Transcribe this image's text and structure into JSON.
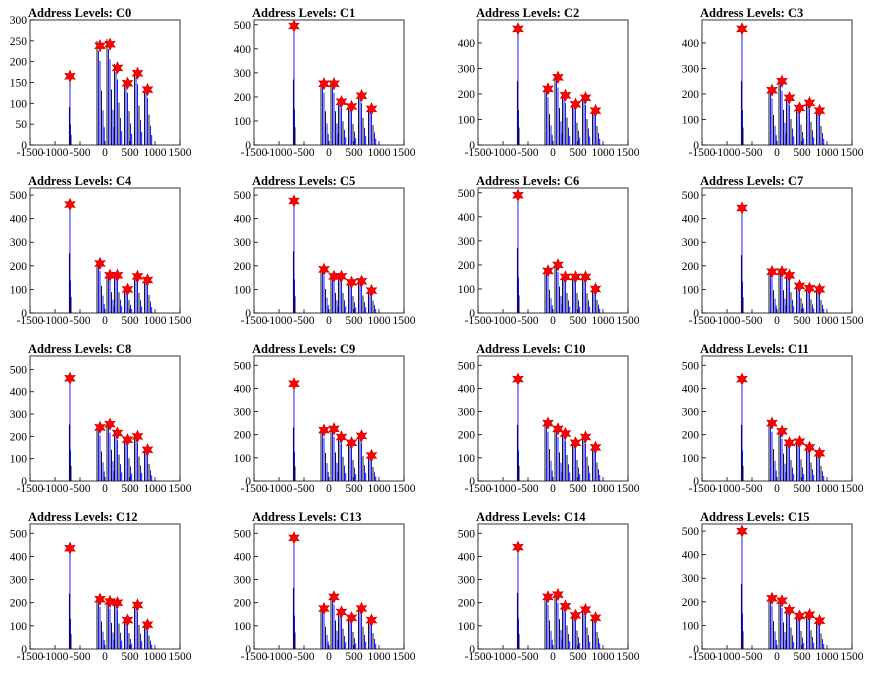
{
  "chart_data": [
    {
      "title": "Address Levels: C0",
      "type": "histogram",
      "xlim": [
        -1500,
        1500
      ],
      "ylim": [
        0,
        300
      ],
      "yticks": [
        0,
        50,
        100,
        150,
        200,
        250,
        300
      ],
      "xticks": [
        -1500,
        -1000,
        -500,
        0,
        500,
        1000,
        1500
      ],
      "peaks_x": [
        -700,
        -100,
        100,
        250,
        450,
        650,
        850
      ],
      "markers": [
        165,
        238,
        242,
        185,
        148,
        172,
        133
      ]
    },
    {
      "title": "Address Levels: C1",
      "type": "histogram",
      "xlim": [
        -1500,
        1500
      ],
      "ylim": [
        0,
        520
      ],
      "yticks": [
        0,
        100,
        200,
        300,
        400,
        500
      ],
      "xticks": [
        -1500,
        -1000,
        -500,
        0,
        500,
        1000,
        1500
      ],
      "peaks_x": [
        -700,
        -100,
        100,
        250,
        450,
        650,
        850
      ],
      "markers": [
        495,
        255,
        255,
        180,
        160,
        205,
        150
      ]
    },
    {
      "title": "Address Levels: C2",
      "type": "histogram",
      "xlim": [
        -1500,
        1500
      ],
      "ylim": [
        0,
        490
      ],
      "yticks": [
        0,
        100,
        200,
        300,
        400
      ],
      "xticks": [
        -1500,
        -1000,
        -500,
        0,
        500,
        1000,
        1500
      ],
      "peaks_x": [
        -700,
        -100,
        100,
        250,
        450,
        650,
        850
      ],
      "markers": [
        455,
        220,
        265,
        195,
        160,
        185,
        135
      ]
    },
    {
      "title": "Address Levels: C3",
      "type": "histogram",
      "xlim": [
        -1500,
        1500
      ],
      "ylim": [
        0,
        490
      ],
      "yticks": [
        0,
        100,
        200,
        300,
        400
      ],
      "xticks": [
        -1500,
        -1000,
        -500,
        0,
        500,
        1000,
        1500
      ],
      "peaks_x": [
        -700,
        -100,
        100,
        250,
        450,
        650,
        850
      ],
      "markers": [
        455,
        215,
        250,
        185,
        145,
        165,
        135
      ]
    },
    {
      "title": "Address Levels: C4",
      "type": "histogram",
      "xlim": [
        -1500,
        1500
      ],
      "ylim": [
        0,
        530
      ],
      "yticks": [
        0,
        100,
        200,
        300,
        400,
        500
      ],
      "xticks": [
        -1500,
        -1000,
        -500,
        0,
        500,
        1000,
        1500
      ],
      "peaks_x": [
        -700,
        -100,
        100,
        250,
        450,
        650,
        850
      ],
      "markers": [
        460,
        210,
        160,
        160,
        100,
        155,
        140
      ]
    },
    {
      "title": "Address Levels: C5",
      "type": "histogram",
      "xlim": [
        -1500,
        1500
      ],
      "ylim": [
        0,
        530
      ],
      "yticks": [
        0,
        100,
        200,
        300,
        400,
        500
      ],
      "xticks": [
        -1500,
        -1000,
        -500,
        0,
        500,
        1000,
        1500
      ],
      "peaks_x": [
        -700,
        -100,
        100,
        250,
        450,
        650,
        850
      ],
      "markers": [
        475,
        185,
        155,
        155,
        130,
        135,
        95
      ]
    },
    {
      "title": "Address Levels: C6",
      "type": "histogram",
      "xlim": [
        -1500,
        1500
      ],
      "ylim": [
        0,
        520
      ],
      "yticks": [
        0,
        100,
        200,
        300,
        400,
        500
      ],
      "xticks": [
        -1500,
        -1000,
        -500,
        0,
        500,
        1000,
        1500
      ],
      "peaks_x": [
        -700,
        -100,
        100,
        250,
        450,
        650,
        850
      ],
      "markers": [
        490,
        175,
        200,
        150,
        150,
        150,
        100
      ]
    },
    {
      "title": "Address Levels: C7",
      "type": "histogram",
      "xlim": [
        -1500,
        1500
      ],
      "ylim": [
        0,
        530
      ],
      "yticks": [
        0,
        100,
        200,
        300,
        400,
        500
      ],
      "xticks": [
        -1500,
        -1000,
        -500,
        0,
        500,
        1000,
        1500
      ],
      "peaks_x": [
        -700,
        -100,
        100,
        250,
        450,
        650,
        850
      ],
      "markers": [
        445,
        175,
        175,
        160,
        115,
        105,
        100
      ]
    },
    {
      "title": "Address Levels: C8",
      "type": "histogram",
      "xlim": [
        -1500,
        1500
      ],
      "ylim": [
        0,
        560
      ],
      "yticks": [
        0,
        100,
        200,
        300,
        400,
        500
      ],
      "xticks": [
        -1500,
        -1000,
        -500,
        0,
        500,
        1000,
        1500
      ],
      "peaks_x": [
        -700,
        -100,
        100,
        250,
        450,
        650,
        850
      ],
      "markers": [
        460,
        240,
        255,
        215,
        185,
        200,
        140
      ]
    },
    {
      "title": "Address Levels: C9",
      "type": "histogram",
      "xlim": [
        -1500,
        1500
      ],
      "ylim": [
        0,
        540
      ],
      "yticks": [
        0,
        100,
        200,
        300,
        400,
        500
      ],
      "xticks": [
        -1500,
        -1000,
        -500,
        0,
        500,
        1000,
        1500
      ],
      "peaks_x": [
        -700,
        -100,
        100,
        250,
        450,
        650,
        850
      ],
      "markers": [
        420,
        220,
        225,
        190,
        165,
        195,
        110
      ]
    },
    {
      "title": "Address Levels: C10",
      "type": "histogram",
      "xlim": [
        -1500,
        1500
      ],
      "ylim": [
        0,
        540
      ],
      "yticks": [
        0,
        100,
        200,
        300,
        400,
        500
      ],
      "xticks": [
        -1500,
        -1000,
        -500,
        0,
        500,
        1000,
        1500
      ],
      "peaks_x": [
        -700,
        -100,
        100,
        250,
        450,
        650,
        850
      ],
      "markers": [
        440,
        250,
        225,
        205,
        165,
        190,
        145
      ]
    },
    {
      "title": "Address Levels: C11",
      "type": "histogram",
      "xlim": [
        -1500,
        1500
      ],
      "ylim": [
        0,
        540
      ],
      "yticks": [
        0,
        100,
        200,
        300,
        400,
        500
      ],
      "xticks": [
        -1500,
        -1000,
        -500,
        0,
        500,
        1000,
        1500
      ],
      "peaks_x": [
        -700,
        -100,
        100,
        250,
        450,
        650,
        850
      ],
      "markers": [
        440,
        250,
        215,
        165,
        170,
        145,
        120
      ]
    },
    {
      "title": "Address Levels: C12",
      "type": "histogram",
      "xlim": [
        -1500,
        1500
      ],
      "ylim": [
        0,
        540
      ],
      "yticks": [
        0,
        100,
        200,
        300,
        400,
        500
      ],
      "xticks": [
        -1500,
        -1000,
        -500,
        0,
        500,
        1000,
        1500
      ],
      "peaks_x": [
        -700,
        -100,
        100,
        250,
        450,
        650,
        850
      ],
      "markers": [
        435,
        215,
        205,
        200,
        125,
        190,
        105
      ]
    },
    {
      "title": "Address Levels: C13",
      "type": "histogram",
      "xlim": [
        -1500,
        1500
      ],
      "ylim": [
        0,
        540
      ],
      "yticks": [
        0,
        100,
        200,
        300,
        400,
        500
      ],
      "xticks": [
        -1500,
        -1000,
        -500,
        0,
        500,
        1000,
        1500
      ],
      "peaks_x": [
        -700,
        -100,
        100,
        250,
        450,
        650,
        850
      ],
      "markers": [
        480,
        175,
        225,
        160,
        135,
        175,
        125
      ]
    },
    {
      "title": "Address Levels: C14",
      "type": "histogram",
      "xlim": [
        -1500,
        1500
      ],
      "ylim": [
        0,
        540
      ],
      "yticks": [
        0,
        100,
        200,
        300,
        400,
        500
      ],
      "xticks": [
        -1500,
        -1000,
        -500,
        0,
        500,
        1000,
        1500
      ],
      "peaks_x": [
        -700,
        -100,
        100,
        250,
        450,
        650,
        850
      ],
      "markers": [
        440,
        225,
        235,
        185,
        145,
        170,
        135
      ]
    },
    {
      "title": "Address Levels: C15",
      "type": "histogram",
      "xlim": [
        -1500,
        1500
      ],
      "ylim": [
        0,
        530
      ],
      "yticks": [
        0,
        100,
        200,
        300,
        400,
        500
      ],
      "xticks": [
        -1500,
        -1000,
        -500,
        0,
        500,
        1000,
        1500
      ],
      "peaks_x": [
        -700,
        -100,
        100,
        250,
        450,
        650,
        850
      ],
      "markers": [
        500,
        215,
        205,
        165,
        140,
        145,
        120
      ]
    }
  ],
  "colors": {
    "histogram": "#0000ff",
    "spike": "#000000",
    "marker": "#ff0000",
    "axis": "#000000"
  }
}
